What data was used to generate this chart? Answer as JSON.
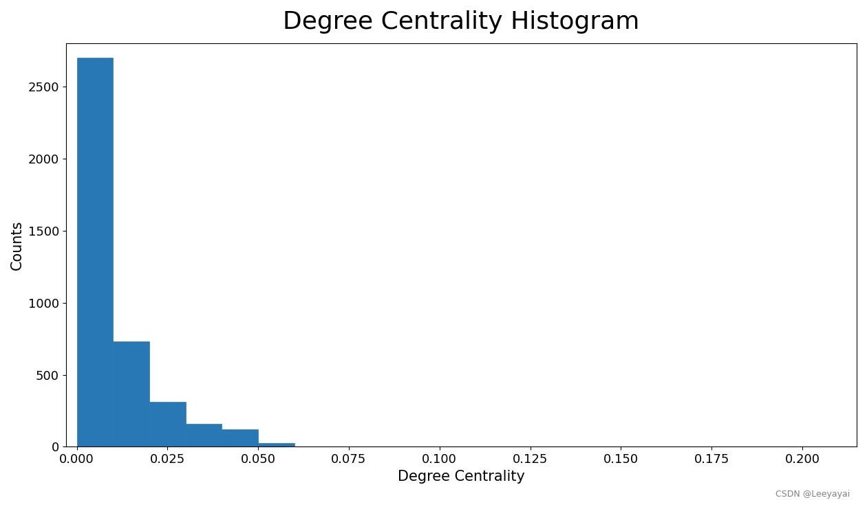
{
  "title": "Degree Centrality Histogram",
  "xlabel": "Degree Centrality",
  "ylabel": "Counts",
  "bar_color": "#2878b5",
  "bar_edgecolor": "#2878b5",
  "title_fontsize": 26,
  "label_fontsize": 15,
  "tick_fontsize": 13,
  "watermark": "CSDN @Leeyayai",
  "watermark_fontsize": 9,
  "bin_edges": [
    0.0,
    0.01,
    0.02,
    0.03,
    0.04,
    0.05,
    0.06,
    0.07,
    0.08,
    0.09,
    0.1,
    0.11,
    0.12,
    0.13,
    0.14,
    0.15,
    0.16,
    0.17,
    0.18,
    0.19,
    0.2,
    0.21
  ],
  "counts": [
    2700,
    730,
    310,
    160,
    120,
    25,
    3,
    2,
    1,
    1,
    0,
    0,
    0,
    0,
    0,
    0,
    0,
    0,
    0,
    0,
    1
  ],
  "xlim": [
    -0.003,
    0.215
  ],
  "ylim": [
    0,
    2800
  ],
  "xticks": [
    0.0,
    0.025,
    0.05,
    0.075,
    0.1,
    0.125,
    0.15,
    0.175,
    0.2
  ],
  "yticks": [
    0,
    500,
    1000,
    1500,
    2000,
    2500
  ]
}
